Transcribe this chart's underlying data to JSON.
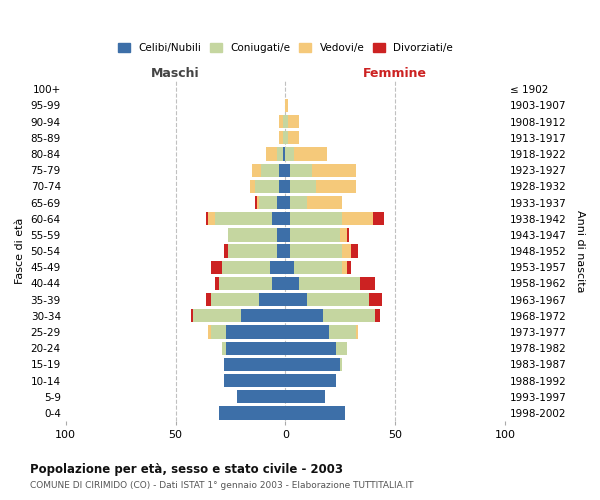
{
  "age_groups": [
    "0-4",
    "5-9",
    "10-14",
    "15-19",
    "20-24",
    "25-29",
    "30-34",
    "35-39",
    "40-44",
    "45-49",
    "50-54",
    "55-59",
    "60-64",
    "65-69",
    "70-74",
    "75-79",
    "80-84",
    "85-89",
    "90-94",
    "95-99",
    "100+"
  ],
  "birth_years": [
    "1998-2002",
    "1993-1997",
    "1988-1992",
    "1983-1987",
    "1978-1982",
    "1973-1977",
    "1968-1972",
    "1963-1967",
    "1958-1962",
    "1953-1957",
    "1948-1952",
    "1943-1947",
    "1938-1942",
    "1933-1937",
    "1928-1932",
    "1923-1927",
    "1918-1922",
    "1913-1917",
    "1908-1912",
    "1903-1907",
    "≤ 1902"
  ],
  "males": {
    "celibi": [
      30,
      22,
      28,
      28,
      27,
      27,
      20,
      12,
      6,
      7,
      4,
      4,
      6,
      4,
      3,
      3,
      1,
      0,
      0,
      0,
      0
    ],
    "coniugati": [
      0,
      0,
      0,
      0,
      2,
      7,
      22,
      22,
      24,
      22,
      22,
      22,
      26,
      8,
      11,
      8,
      3,
      1,
      1,
      0,
      0
    ],
    "vedovi": [
      0,
      0,
      0,
      0,
      0,
      1,
      0,
      0,
      0,
      0,
      0,
      0,
      3,
      1,
      2,
      4,
      5,
      2,
      2,
      0,
      0
    ],
    "divorziati": [
      0,
      0,
      0,
      0,
      0,
      0,
      1,
      2,
      2,
      5,
      2,
      0,
      1,
      1,
      0,
      0,
      0,
      0,
      0,
      0,
      0
    ]
  },
  "females": {
    "nubili": [
      27,
      18,
      23,
      25,
      23,
      20,
      17,
      10,
      6,
      4,
      2,
      2,
      2,
      2,
      2,
      2,
      0,
      0,
      0,
      0,
      0
    ],
    "coniugate": [
      0,
      0,
      0,
      1,
      5,
      12,
      24,
      28,
      28,
      22,
      24,
      23,
      24,
      8,
      12,
      10,
      4,
      1,
      1,
      0,
      0
    ],
    "vedove": [
      0,
      0,
      0,
      0,
      0,
      1,
      0,
      0,
      0,
      2,
      4,
      3,
      14,
      16,
      18,
      20,
      15,
      5,
      5,
      1,
      0
    ],
    "divorziate": [
      0,
      0,
      0,
      0,
      0,
      0,
      2,
      6,
      7,
      2,
      3,
      1,
      5,
      0,
      0,
      0,
      0,
      0,
      0,
      0,
      0
    ]
  },
  "colors": {
    "celibi": "#3d6fa8",
    "coniugati": "#c5d6a0",
    "vedovi": "#f5c97a",
    "divorziati": "#cc2222"
  },
  "xlim": 100,
  "title": "Popolazione per età, sesso e stato civile - 2003",
  "subtitle": "COMUNE DI CIRIMIDO (CO) - Dati ISTAT 1° gennaio 2003 - Elaborazione TUTTITALIA.IT",
  "ylabel_left": "Fasce di età",
  "ylabel_right": "Anni di nascita",
  "xlabel_left": "Maschi",
  "xlabel_right": "Femmine",
  "legend_labels": [
    "Celibi/Nubili",
    "Coniugati/e",
    "Vedovi/e",
    "Divorziati/e"
  ],
  "background_color": "#ffffff",
  "maschi_color": "#444444",
  "femmine_color": "#cc2222"
}
